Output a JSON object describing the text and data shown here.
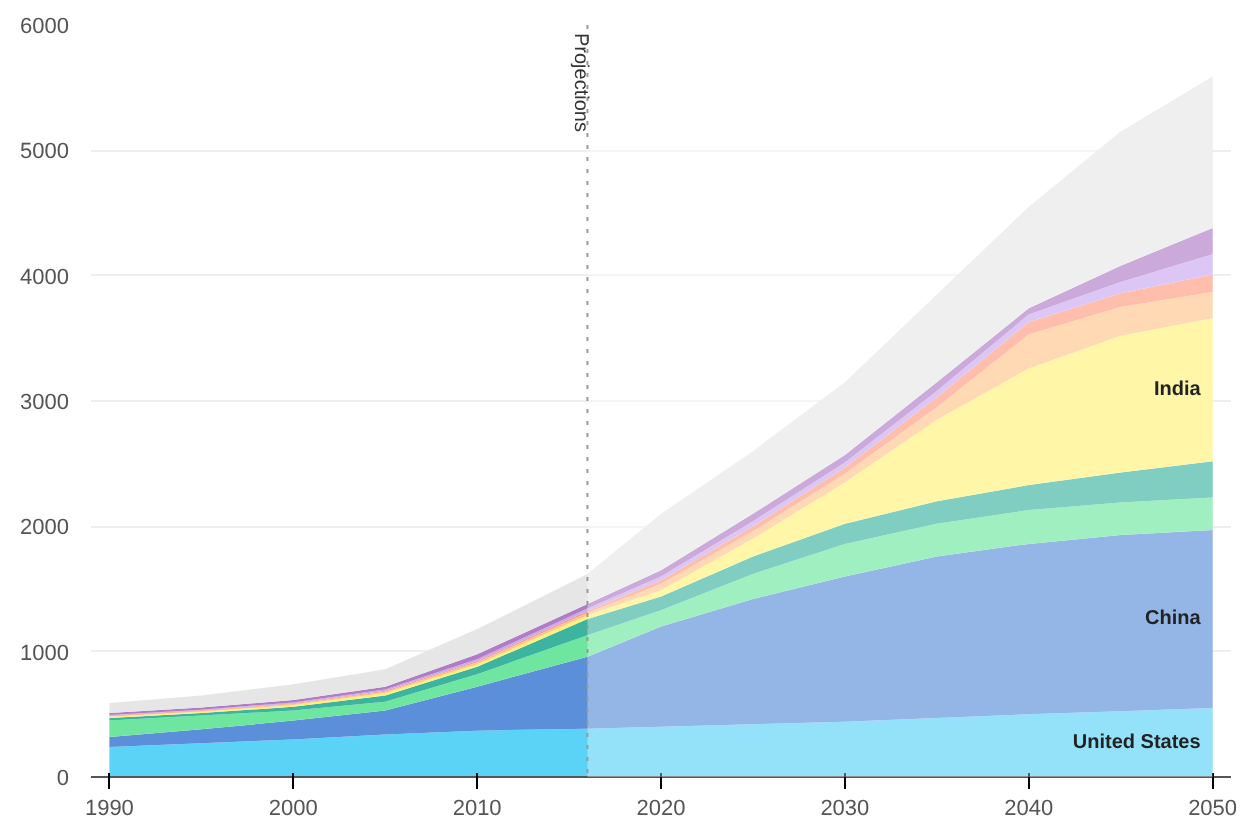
{
  "chart_data": {
    "type": "area",
    "stacked": true,
    "x": [
      1990,
      1995,
      2000,
      2005,
      2010,
      2016,
      2020,
      2025,
      2030,
      2035,
      2040,
      2045,
      2050
    ],
    "series": [
      {
        "name": "United States",
        "color": "#5bd3f7",
        "values": [
          240,
          270,
          300,
          340,
          370,
          385,
          400,
          420,
          440,
          470,
          500,
          525,
          550
        ]
      },
      {
        "name": "China",
        "color": "#5b8fd9",
        "values": [
          80,
          110,
          150,
          190,
          350,
          575,
          800,
          1000,
          1160,
          1290,
          1360,
          1405,
          1420
        ]
      },
      {
        "color": "#6ee6a0",
        "values": [
          130,
          110,
          80,
          70,
          100,
          170,
          130,
          200,
          260,
          260,
          270,
          260,
          260
        ]
      },
      {
        "color": "#3cb4a0",
        "values": [
          20,
          20,
          30,
          50,
          60,
          130,
          110,
          140,
          160,
          180,
          200,
          240,
          290
        ]
      },
      {
        "name": "India",
        "color": "#fff27a",
        "values": [
          10,
          10,
          15,
          20,
          20,
          30,
          50,
          140,
          330,
          650,
          930,
          1090,
          1140
        ]
      },
      {
        "color": "#ffc58a",
        "values": [
          5,
          7,
          7,
          10,
          15,
          20,
          50,
          60,
          70,
          100,
          270,
          230,
          210
        ]
      },
      {
        "color": "#ff9a80",
        "values": [
          5,
          5,
          6,
          8,
          10,
          15,
          30,
          40,
          50,
          80,
          100,
          110,
          140
        ]
      },
      {
        "color": "#c8a8f0",
        "values": [
          5,
          5,
          7,
          10,
          15,
          20,
          30,
          40,
          40,
          50,
          60,
          90,
          160
        ]
      },
      {
        "color": "#b07cc6",
        "values": [
          15,
          18,
          20,
          22,
          40,
          35,
          50,
          60,
          60,
          70,
          50,
          130,
          210
        ]
      },
      {
        "color": "#e6e6e6",
        "values": [
          80,
          95,
          125,
          140,
          200,
          240,
          450,
          500,
          580,
          700,
          810,
          1070,
          1210
        ]
      }
    ],
    "xlim": [
      1989,
      2051
    ],
    "xticks": [
      1990,
      2000,
      2010,
      2020,
      2030,
      2040,
      2050
    ],
    "ylim": [
      0,
      6000
    ],
    "yticks": [
      0,
      1000,
      2000,
      3000,
      4000,
      5000,
      6000
    ],
    "grid": "y",
    "ref_lines": [
      {
        "axis": "x",
        "value": 2016,
        "label": "Projections",
        "line_style": "dotted",
        "color": "#999999"
      }
    ],
    "bands": [
      {
        "axis": "x",
        "from": 2016,
        "to": 2050,
        "color": "#ffffff"
      }
    ]
  }
}
